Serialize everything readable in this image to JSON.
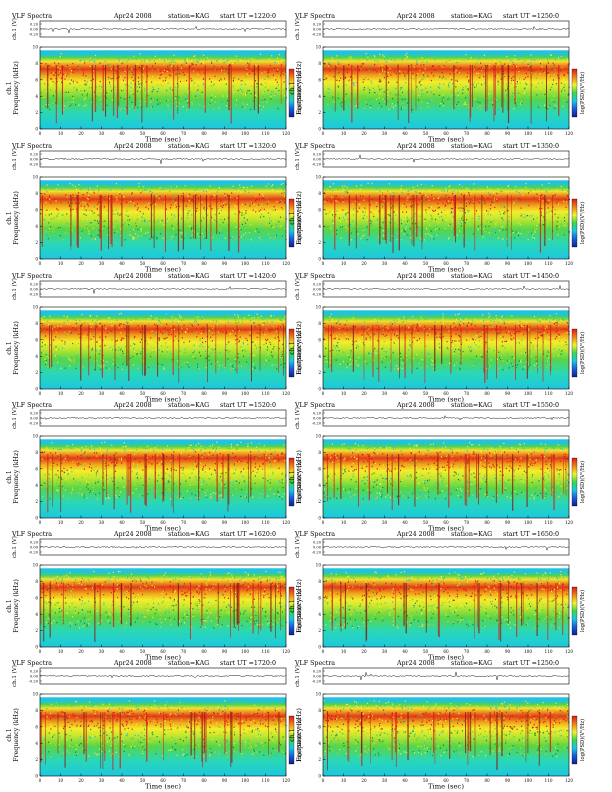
{
  "chart_data": {
    "type": "heatmap",
    "common": {
      "header_left": "VLF Spectra",
      "date": "Apr24 2008",
      "station": "station=KAG",
      "ut_label": "start  UT  =",
      "ch_label": "ch.1 (V)",
      "ch_ticks": [
        "0.20",
        "0.00",
        "-0.20"
      ],
      "ylabel": "Frequency  (kHz)",
      "ylabel_ch": "ch.1",
      "xlabel": "Time  (sec)",
      "colorbar_label": "log(PSD)(V²/Hz)",
      "x_ticks": [
        0,
        10,
        20,
        30,
        40,
        50,
        60,
        70,
        80,
        90,
        100,
        110,
        120
      ],
      "y_ticks": [
        0,
        2,
        4,
        6,
        8,
        10
      ],
      "xlim": [
        0,
        120
      ],
      "ylim": [
        0,
        10
      ],
      "colormap": [
        "#0a1f8f",
        "#1c5ad8",
        "#19c6e6",
        "#3fd44a",
        "#f2f22a",
        "#f07f18",
        "#d81a1a"
      ]
    },
    "panels": [
      {
        "start": "1220:0"
      },
      {
        "start": "1250:0"
      },
      {
        "start": "1320:0"
      },
      {
        "start": "1350:0"
      },
      {
        "start": "1420:0"
      },
      {
        "start": "1450:0"
      },
      {
        "start": "1520:0"
      },
      {
        "start": "1550:0"
      },
      {
        "start": "1620:0"
      },
      {
        "start": "1650:0"
      },
      {
        "start": "1720:0"
      },
      {
        "start": "1250:0"
      }
    ]
  }
}
